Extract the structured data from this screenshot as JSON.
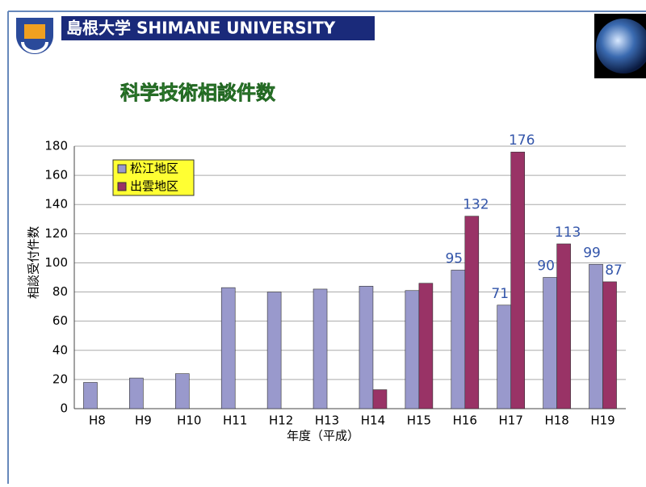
{
  "header": {
    "university": "島根大学 SHIMANE UNIVERSITY"
  },
  "chart_data": {
    "type": "bar",
    "title": "科学技術相談件数",
    "x_label": "年度（平成）",
    "y_label": "相談受付件数",
    "categories": [
      "H8",
      "H9",
      "H10",
      "H11",
      "H12",
      "H13",
      "H14",
      "H15",
      "H16",
      "H17",
      "H18",
      "H19"
    ],
    "series": [
      {
        "name": "松江地区",
        "color": "#9999cc",
        "values": [
          18,
          21,
          24,
          83,
          80,
          82,
          84,
          81,
          95,
          71,
          90,
          99
        ],
        "value_labels": [
          null,
          null,
          null,
          null,
          null,
          null,
          null,
          null,
          "95",
          "71",
          "90",
          "99"
        ]
      },
      {
        "name": "出雲地区",
        "color": "#993366",
        "values": [
          null,
          null,
          null,
          null,
          null,
          null,
          13,
          86,
          132,
          176,
          113,
          87
        ],
        "value_labels": [
          null,
          null,
          null,
          null,
          null,
          null,
          null,
          null,
          "132",
          "176",
          "113",
          "87"
        ]
      }
    ],
    "ylim": [
      0,
      180
    ],
    "yticks": [
      0,
      20,
      40,
      60,
      80,
      100,
      120,
      140,
      160,
      180
    ],
    "grid": true,
    "legend": "top-left"
  }
}
